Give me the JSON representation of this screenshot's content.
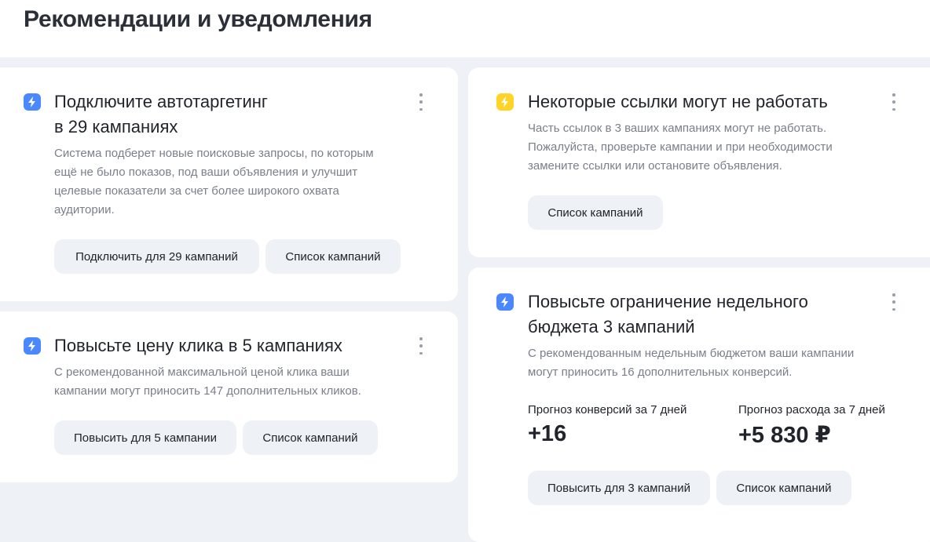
{
  "page": {
    "title": "Рекомендации и уведомления"
  },
  "colors": {
    "info": "#4b88ff",
    "warning": "#ffd426",
    "background": "#eef1f5"
  },
  "cards": [
    {
      "icon": "lightning-icon",
      "title_line1": "Подключите автотаргетинг",
      "title_line2": "в 29 кампаниях",
      "body": [
        "Система подберет новые поисковые запросы, по которым",
        "ещё не было показов, под ваши объявления и улучшит",
        "целевые показатели за счет более широкого охвата",
        "аудитории."
      ],
      "buttons": [
        "Подключить для 29 кампаний",
        "Список кампаний"
      ]
    },
    {
      "icon": "lightning-icon",
      "title_line1": "Повысьте цену клика в 5 кампаниях",
      "body": [
        "С рекомендованной максимальной ценой клика ваши",
        "кампании могут приносить 147 дополнительных кликов."
      ],
      "buttons": [
        "Повысить для 5 кампании",
        "Список кампаний"
      ]
    },
    {
      "icon": "lightning-icon",
      "title_line1": "Некоторые ссылки могут не работать",
      "body": [
        "Часть ссылок в 3 ваших кампаниях могут не работать.",
        "Пожалуйста, проверьте кампании и при необходимости",
        "замените ссылки или остановите объявления."
      ],
      "buttons": [
        "Список кампаний"
      ]
    },
    {
      "icon": "lightning-icon",
      "title_line1": "Повысьте ограничение недельного",
      "title_line2": "бюджета 3 кампаний",
      "body": [
        "С рекомендованным недельным бюджетом ваши кампании",
        "могут приносить 16 дополнительных конверсий."
      ],
      "metrics": [
        {
          "label": "Прогноз конверсий за 7 дней",
          "value": "+16"
        },
        {
          "label": "Прогноз расхода за 7 дней",
          "value": "+5 830 ₽"
        }
      ],
      "buttons": [
        "Повысить для 3 кампаний",
        "Список кампаний"
      ]
    }
  ]
}
